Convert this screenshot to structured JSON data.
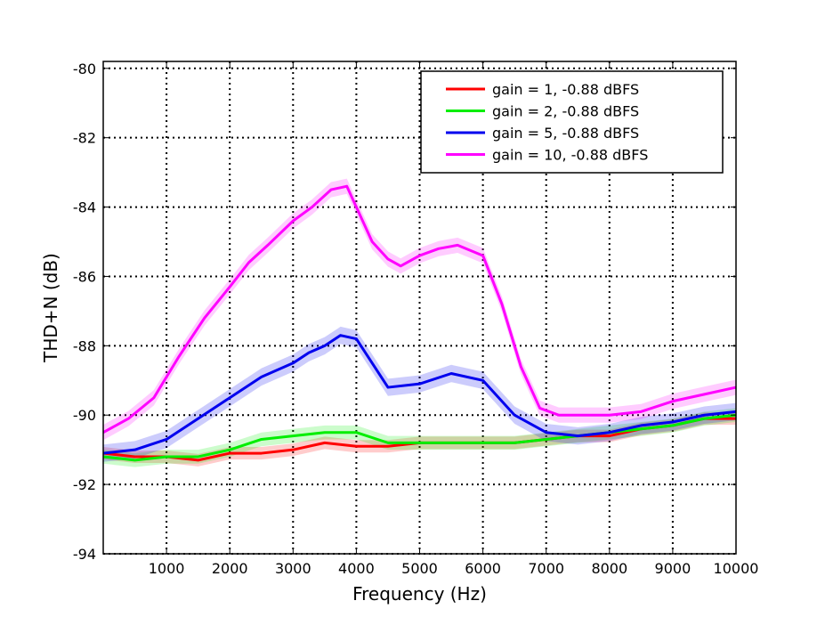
{
  "chart_data": {
    "type": "line",
    "title": "",
    "xlabel": "Frequency (Hz)",
    "ylabel": "THD+N (dB)",
    "xlim": [
      0,
      10000
    ],
    "ylim": [
      -94,
      -79.8
    ],
    "xticks": [
      1000,
      2000,
      3000,
      4000,
      5000,
      6000,
      7000,
      8000,
      9000,
      10000
    ],
    "xtick_labels": [
      "1000",
      "2000",
      "3000",
      "4000",
      "5000",
      "6000",
      "7000",
      "8000",
      "9000",
      "10000"
    ],
    "yticks": [
      -80,
      -82,
      -84,
      -86,
      -88,
      -90,
      -92,
      -94
    ],
    "ytick_labels": [
      "-80",
      "-82",
      "-84",
      "-86",
      "-88",
      "-90",
      "-92",
      "-94"
    ],
    "grid": true,
    "legend_position": "top-right",
    "series": [
      {
        "name": "gain = 1, -0.88 dBFS",
        "color": "#ff0000",
        "band": 0.18,
        "x": [
          0,
          500,
          1000,
          1500,
          2000,
          2500,
          3000,
          3500,
          4000,
          4500,
          5000,
          5500,
          6000,
          6500,
          7000,
          7500,
          8000,
          8500,
          9000,
          9500,
          10000
        ],
        "y": [
          -91.1,
          -91.2,
          -91.2,
          -91.3,
          -91.1,
          -91.1,
          -91.0,
          -90.8,
          -90.9,
          -90.9,
          -90.8,
          -90.8,
          -90.8,
          -90.8,
          -90.7,
          -90.6,
          -90.6,
          -90.4,
          -90.3,
          -90.1,
          -90.1
        ]
      },
      {
        "name": "gain = 2, -0.88 dBFS",
        "color": "#00ee00",
        "band": 0.2,
        "x": [
          0,
          500,
          1000,
          1500,
          2000,
          2500,
          3000,
          3500,
          4000,
          4500,
          5000,
          5500,
          6000,
          6500,
          7000,
          7500,
          8000,
          8500,
          9000,
          9500,
          10000
        ],
        "y": [
          -91.2,
          -91.3,
          -91.2,
          -91.2,
          -91.0,
          -90.7,
          -90.6,
          -90.5,
          -90.5,
          -90.8,
          -90.8,
          -90.8,
          -90.8,
          -90.8,
          -90.7,
          -90.6,
          -90.5,
          -90.4,
          -90.3,
          -90.1,
          -90.0
        ]
      },
      {
        "name": "gain = 5, -0.88 dBFS",
        "color": "#0000ee",
        "band": 0.25,
        "x": [
          0,
          500,
          1000,
          1500,
          2000,
          2500,
          3000,
          3250,
          3500,
          3750,
          4000,
          4500,
          5000,
          5500,
          6000,
          6500,
          7000,
          7500,
          8000,
          8500,
          9000,
          9500,
          10000
        ],
        "y": [
          -91.1,
          -91.0,
          -90.7,
          -90.1,
          -89.5,
          -88.9,
          -88.5,
          -88.2,
          -88.0,
          -87.7,
          -87.8,
          -89.2,
          -89.1,
          -88.8,
          -89.0,
          -90.0,
          -90.5,
          -90.6,
          -90.5,
          -90.3,
          -90.2,
          -90.0,
          -89.9
        ]
      },
      {
        "name": "gain = 10, -0.88 dBFS",
        "color": "#ff00ff",
        "band": 0.22,
        "x": [
          0,
          400,
          800,
          1200,
          1600,
          2000,
          2300,
          2600,
          3000,
          3300,
          3600,
          3850,
          4000,
          4250,
          4500,
          4700,
          5000,
          5300,
          5600,
          6000,
          6300,
          6600,
          6900,
          7200,
          7500,
          8000,
          8500,
          9000,
          9500,
          10000
        ],
        "y": [
          -90.5,
          -90.1,
          -89.5,
          -88.3,
          -87.2,
          -86.3,
          -85.6,
          -85.1,
          -84.4,
          -84.0,
          -83.5,
          -83.4,
          -84.0,
          -85.0,
          -85.5,
          -85.7,
          -85.4,
          -85.2,
          -85.1,
          -85.4,
          -86.8,
          -88.6,
          -89.8,
          -90.0,
          -90.0,
          -90.0,
          -89.9,
          -89.6,
          -89.4,
          -89.2
        ]
      }
    ]
  }
}
